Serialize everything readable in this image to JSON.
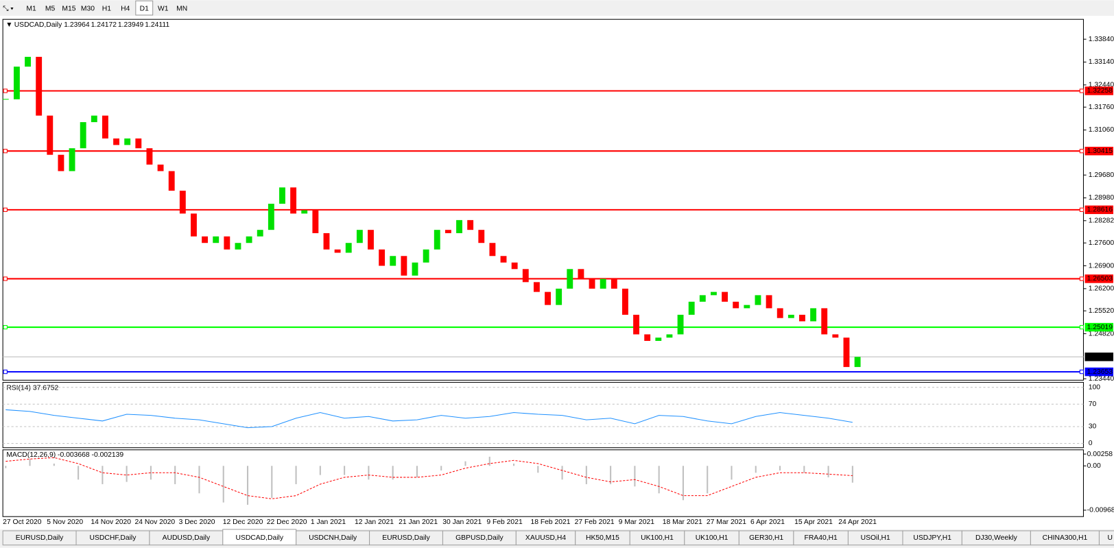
{
  "toolbar": {
    "timeframes": [
      "M1",
      "M5",
      "M15",
      "M30",
      "H1",
      "H4",
      "D1",
      "W1",
      "MN"
    ],
    "active": "D1"
  },
  "chart_data": {
    "type": "candlestick",
    "symbol": "USDCAD,Daily",
    "ohlc": [
      1.23964,
      1.24172,
      1.23949,
      1.24111
    ],
    "closes": [
      1.32,
      1.33,
      1.333,
      1.315,
      1.303,
      1.298,
      1.305,
      1.313,
      1.315,
      1.308,
      1.306,
      1.308,
      1.305,
      1.3,
      1.298,
      1.292,
      1.285,
      1.278,
      1.276,
      1.278,
      1.274,
      1.276,
      1.278,
      1.28,
      1.288,
      1.293,
      1.285,
      1.286,
      1.279,
      1.274,
      1.273,
      1.276,
      1.28,
      1.274,
      1.269,
      1.272,
      1.266,
      1.27,
      1.274,
      1.28,
      1.279,
      1.283,
      1.28,
      1.276,
      1.272,
      1.27,
      1.268,
      1.264,
      1.261,
      1.257,
      1.262,
      1.268,
      1.265,
      1.262,
      1.265,
      1.262,
      1.254,
      1.248,
      1.246,
      1.247,
      1.248,
      1.254,
      1.258,
      1.26,
      1.261,
      1.258,
      1.256,
      1.257,
      1.26,
      1.256,
      1.253,
      1.254,
      1.252,
      1.256,
      1.248,
      1.247,
      1.238,
      1.2411
    ],
    "up_color": "#00e000",
    "down_color": "#ff0000",
    "ylim": [
      1.23396,
      1.34427
    ],
    "yticks": [
      {
        "value": 1.3384,
        "label": "1.33840"
      },
      {
        "value": 1.3314,
        "label": "1.33140"
      },
      {
        "value": 1.3244,
        "label": "1.32440"
      },
      {
        "value": 1.3176,
        "label": "1.31760"
      },
      {
        "value": 1.3106,
        "label": "1.31060"
      },
      {
        "value": 1.2968,
        "label": "1.29680"
      },
      {
        "value": 1.2898,
        "label": "1.28980"
      },
      1.28282,
      {
        "value": 1.276,
        "label": "1.27600"
      },
      {
        "value": 1.269,
        "label": "1.26900"
      },
      {
        "value": 1.262,
        "label": "1.26200"
      },
      {
        "value": 1.2552,
        "label": "1.25520"
      },
      {
        "value": 1.2482,
        "label": "1.24820"
      },
      {
        "value": 1.2344,
        "label": "1.23440"
      }
    ],
    "current_price": 1.24111,
    "levels": [
      {
        "value": 1.32258,
        "color": "#ff0000"
      },
      {
        "value": 1.30415,
        "color": "#ff0000"
      },
      {
        "value": 1.28616,
        "color": "#ff0000"
      },
      {
        "value": 1.26503,
        "color": "#ff0000"
      },
      {
        "value": 1.25019,
        "color": "#00ff00"
      },
      {
        "value": 1.23653,
        "color": "#0000ff"
      }
    ],
    "dates": [
      "27 Oct 2020",
      "5 Nov 2020",
      "14 Nov 2020",
      "24 Nov 2020",
      "3 Dec 2020",
      "12 Dec 2020",
      "22 Dec 2020",
      "1 Jan 2021",
      "12 Jan 2021",
      "21 Jan 2021",
      "30 Jan 2021",
      "9 Feb 2021",
      "18 Feb 2021",
      "27 Feb 2021",
      "9 Mar 2021",
      "18 Mar 2021",
      "27 Mar 2021",
      "6 Apr 2021",
      "15 Apr 2021",
      "24 Apr 2021"
    ],
    "rsi": {
      "title": "RSI(14) 37.6752",
      "color": "#1e90ff",
      "values": [
        60,
        57,
        50,
        45,
        40,
        52,
        50,
        45,
        42,
        35,
        28,
        30,
        45,
        55,
        45,
        48,
        40,
        42,
        50,
        45,
        48,
        55,
        52,
        50,
        42,
        45,
        35,
        50,
        48,
        40,
        35,
        48,
        55,
        50,
        45,
        37.6752
      ],
      "ylim": [
        -7.6,
        108.9
      ],
      "yticks": [
        100,
        70,
        30,
        0
      ]
    },
    "macd": {
      "title": "MACD(12,26,9) -0.003668 -0.002139",
      "signal_color": "#ff0000",
      "histogram_color": "#c0c0c0",
      "histogram": [
        -0.0005,
        0.0015,
        0.0005,
        -0.003,
        -0.004,
        -0.0035,
        -0.003,
        -0.004,
        -0.006,
        -0.008,
        -0.0085,
        -0.007,
        -0.004,
        -0.002,
        -0.002,
        -0.003,
        -0.003,
        -0.0025,
        -0.001,
        0.001,
        0.002,
        0.0005,
        -0.0015,
        -0.003,
        -0.004,
        -0.004,
        -0.0045,
        -0.006,
        -0.0075,
        -0.006,
        -0.003,
        -0.0015,
        -0.001,
        -0.0015,
        -0.0025,
        -0.003668
      ],
      "signal": [
        0.001,
        0.0015,
        0.0018,
        0.0005,
        -0.0015,
        -0.002,
        -0.0015,
        -0.0015,
        -0.0025,
        -0.0045,
        -0.0065,
        -0.0072,
        -0.0065,
        -0.004,
        -0.0025,
        -0.002,
        -0.0025,
        -0.0025,
        -0.002,
        -0.0005,
        0.0005,
        0.0012,
        0.0005,
        -0.001,
        -0.0025,
        -0.0035,
        -0.003,
        -0.0045,
        -0.0065,
        -0.0065,
        -0.0045,
        -0.0025,
        -0.0015,
        -0.0015,
        -0.0018,
        -0.002139
      ],
      "ylim": [
        -0.009687,
        0.00258
      ],
      "yticks": [
        0.00258,
        {
          "value": 0,
          "label": "0.00"
        },
        -0.009687
      ]
    }
  },
  "tabs": {
    "items": [
      "EURUSD,Daily",
      "USDCHF,Daily",
      "AUDUSD,Daily",
      "USDCAD,Daily",
      "USDCNH,Daily",
      "EURUSD,Daily",
      "GBPUSD,Daily",
      "XAUUSD,H4",
      "HK50,M15",
      "UK100,H1",
      "UK100,H1",
      "GER30,H1",
      "FRA40,H1",
      "USOil,H1",
      "USDJPY,H1",
      "DJ30,Weekly",
      "CHINA300,H1",
      "U"
    ],
    "active": 3
  }
}
